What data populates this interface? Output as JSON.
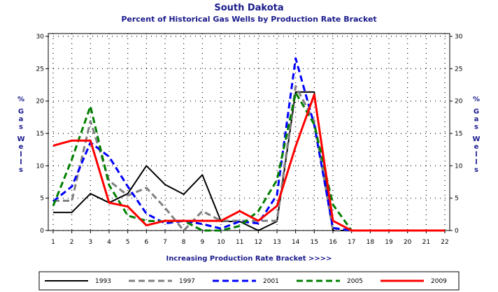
{
  "chart_data": {
    "type": "line",
    "title": "South Dakota",
    "subtitle": "Percent of Historical Gas Wells by Production Rate Bracket",
    "xlabel": "Increasing Production Rate Bracket >>>>",
    "ylabel_left": "% Gas Wells",
    "ylabel_right": "% Gas Wells",
    "x": [
      1,
      2,
      3,
      4,
      5,
      6,
      7,
      8,
      9,
      10,
      11,
      12,
      13,
      14,
      15,
      16,
      17,
      18,
      19,
      20,
      21,
      22
    ],
    "xlim": [
      1,
      22
    ],
    "ylim": [
      0,
      30
    ],
    "yticks": [
      0,
      5,
      10,
      15,
      20,
      25,
      30
    ],
    "grid": true,
    "legend_position": "bottom",
    "series": [
      {
        "name": "1993",
        "color": "#000000",
        "dash": "solid",
        "width": 2,
        "values": [
          2.8,
          2.8,
          5.7,
          4.3,
          5.7,
          10.0,
          7.1,
          5.6,
          8.6,
          1.4,
          1.4,
          0.0,
          1.4,
          21.4,
          21.4,
          0.0,
          0.0,
          0.0,
          0.0,
          0.0,
          0.0,
          0.0
        ]
      },
      {
        "name": "1997",
        "color": "#808080",
        "dash": "dashed",
        "width": 3,
        "values": [
          4.6,
          4.6,
          16.9,
          7.7,
          5.4,
          6.6,
          3.5,
          0.0,
          3.0,
          1.5,
          1.5,
          1.5,
          1.5,
          22.3,
          16.9,
          0.0,
          0.0,
          0.0,
          0.0,
          0.0,
          0.0,
          0.0
        ]
      },
      {
        "name": "2001",
        "color": "#0000ff",
        "dash": "dashed",
        "width": 3,
        "values": [
          4.5,
          6.8,
          13.6,
          11.4,
          6.8,
          2.6,
          1.1,
          1.5,
          1.0,
          0.3,
          1.4,
          1.1,
          5.5,
          26.6,
          16.3,
          0.4,
          0.0,
          0.0,
          0.0,
          0.0,
          0.0,
          0.0
        ]
      },
      {
        "name": "2005",
        "color": "#007f00",
        "dash": "dashed",
        "width": 3,
        "values": [
          3.8,
          11.0,
          19.2,
          7.0,
          2.3,
          1.5,
          1.4,
          1.5,
          0.0,
          0.0,
          0.7,
          3.0,
          7.8,
          21.3,
          16.4,
          4.0,
          0.0,
          0.0,
          0.0,
          0.0,
          0.0,
          0.0
        ]
      },
      {
        "name": "2009",
        "color": "#ff0000",
        "dash": "solid",
        "width": 3,
        "values": [
          13.1,
          13.9,
          13.9,
          4.3,
          3.7,
          0.8,
          1.5,
          1.5,
          1.5,
          1.5,
          3.0,
          1.5,
          3.8,
          13.0,
          21.0,
          1.5,
          0.0,
          0.0,
          0.0,
          0.0,
          0.0,
          0.0
        ]
      }
    ]
  }
}
